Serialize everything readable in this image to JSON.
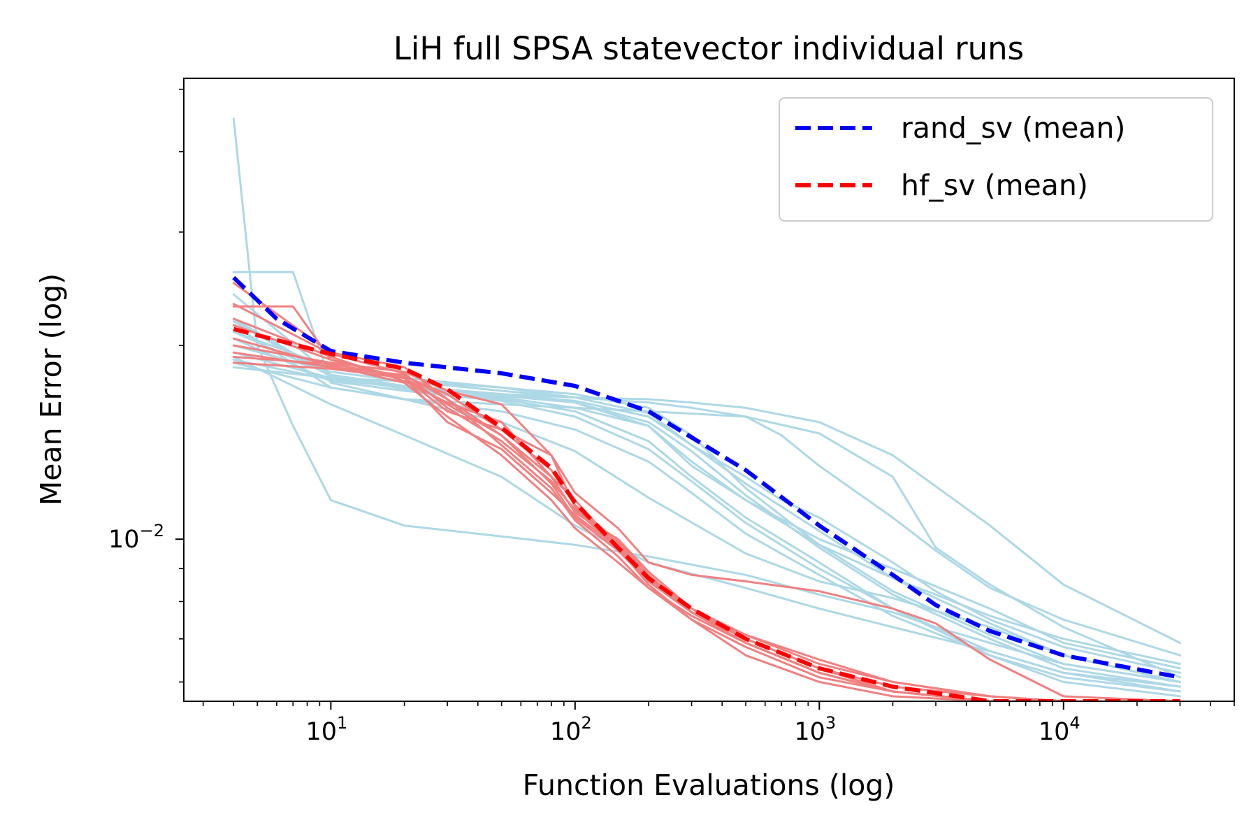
{
  "chart_data": {
    "type": "line",
    "title": "LiH full SPSA statevector individual runs",
    "xlabel": "Function Evaluations (log)",
    "ylabel": "Mean Error (log)",
    "xscale": "log",
    "yscale": "log",
    "xlim": [
      2.5,
      50000
    ],
    "ylim": [
      0.0056,
      0.052
    ],
    "x_ticks": [
      {
        "value": 10,
        "base": "10",
        "exp": "1"
      },
      {
        "value": 100,
        "base": "10",
        "exp": "2"
      },
      {
        "value": 1000,
        "base": "10",
        "exp": "3"
      },
      {
        "value": 10000,
        "base": "10",
        "exp": "4"
      }
    ],
    "y_ticks": [
      {
        "value": 0.01,
        "base": "10",
        "exp": "−2"
      }
    ],
    "legend": {
      "position": "upper right",
      "entries": [
        {
          "label": "rand_sv (mean)",
          "color": "#0000ff",
          "style": "dashed"
        },
        {
          "label": "hf_sv (mean)",
          "color": "#ff0000",
          "style": "dashed"
        }
      ]
    },
    "colors": {
      "rand_runs": "#add8e6",
      "hf_runs": "#f08080",
      "rand_mean": "#0000ff",
      "hf_mean": "#ff0000"
    },
    "series": [
      {
        "name": "rand_sv run 1",
        "group": "rand_runs",
        "x": [
          4,
          5,
          7,
          10,
          20,
          50,
          100,
          200,
          500,
          1000,
          2000,
          3000,
          5000,
          10000,
          30000
        ],
        "y": [
          0.045,
          0.02,
          0.015,
          0.0115,
          0.0105,
          0.0101,
          0.0098,
          0.0094,
          0.0088,
          0.0082,
          0.0077,
          0.0073,
          0.0069,
          0.0064,
          0.006
        ]
      },
      {
        "name": "rand_sv run 2",
        "group": "rand_runs",
        "x": [
          4,
          7,
          10,
          20,
          50,
          100,
          200,
          500,
          1000,
          2000,
          3000,
          5000,
          10000,
          30000
        ],
        "y": [
          0.026,
          0.026,
          0.0175,
          0.0165,
          0.0162,
          0.016,
          0.0158,
          0.0155,
          0.0146,
          0.0125,
          0.0097,
          0.0085,
          0.0073,
          0.0061
        ]
      },
      {
        "name": "rand_sv run 3",
        "group": "rand_runs",
        "x": [
          4,
          10,
          20,
          50,
          100,
          200,
          300,
          500,
          700,
          1000,
          2000,
          3000,
          5000,
          10000,
          30000
        ],
        "y": [
          0.022,
          0.018,
          0.0173,
          0.0168,
          0.0164,
          0.0155,
          0.014,
          0.0125,
          0.0115,
          0.0108,
          0.0092,
          0.0083,
          0.0075,
          0.0068,
          0.0062
        ]
      },
      {
        "name": "rand_sv run 4",
        "group": "rand_runs",
        "x": [
          4,
          10,
          20,
          50,
          100,
          200,
          300,
          500,
          1000,
          2000,
          5000,
          10000,
          30000
        ],
        "y": [
          0.021,
          0.018,
          0.0171,
          0.0166,
          0.016,
          0.015,
          0.0132,
          0.0115,
          0.01,
          0.009,
          0.0078,
          0.0069,
          0.0063
        ]
      },
      {
        "name": "rand_sv run 5",
        "group": "rand_runs",
        "x": [
          4,
          10,
          20,
          50,
          100,
          200,
          300,
          500,
          1000,
          2000,
          5000,
          10000,
          30000
        ],
        "y": [
          0.0195,
          0.0178,
          0.0172,
          0.0168,
          0.0166,
          0.0165,
          0.0163,
          0.016,
          0.0152,
          0.0135,
          0.0105,
          0.0085,
          0.0069
        ]
      },
      {
        "name": "rand_sv run 6",
        "group": "rand_runs",
        "x": [
          4,
          10,
          20,
          50,
          100,
          200,
          300,
          500,
          700,
          1000,
          2000,
          3000,
          5000,
          10000,
          30000
        ],
        "y": [
          0.02,
          0.0182,
          0.0176,
          0.017,
          0.0166,
          0.0163,
          0.016,
          0.0155,
          0.0145,
          0.013,
          0.0108,
          0.0096,
          0.0084,
          0.0075,
          0.0066
        ]
      },
      {
        "name": "rand_sv run 7",
        "group": "rand_runs",
        "x": [
          4,
          10,
          20,
          50,
          100,
          200,
          300,
          500,
          1000,
          2000,
          3000,
          5000,
          10000,
          30000
        ],
        "y": [
          0.0185,
          0.0178,
          0.0176,
          0.0172,
          0.0168,
          0.016,
          0.0145,
          0.012,
          0.0098,
          0.0087,
          0.0082,
          0.0076,
          0.007,
          0.0064
        ]
      },
      {
        "name": "rand_sv run 8",
        "group": "rand_runs",
        "x": [
          4,
          10,
          20,
          50,
          100,
          200,
          300,
          500,
          1000,
          2000,
          5000,
          10000,
          30000
        ],
        "y": [
          0.021,
          0.0185,
          0.0178,
          0.0172,
          0.0166,
          0.0157,
          0.014,
          0.0122,
          0.0103,
          0.0087,
          0.0074,
          0.0066,
          0.006
        ]
      },
      {
        "name": "rand_sv run 9",
        "group": "rand_runs",
        "x": [
          4,
          10,
          20,
          50,
          100,
          200,
          300,
          500,
          1000,
          2000,
          5000,
          10000,
          30000
        ],
        "y": [
          0.024,
          0.018,
          0.0173,
          0.0167,
          0.0163,
          0.015,
          0.013,
          0.0115,
          0.0098,
          0.0083,
          0.0071,
          0.0064,
          0.006
        ]
      },
      {
        "name": "rand_sv run 10",
        "group": "rand_runs",
        "x": [
          4,
          10,
          20,
          50,
          100,
          200,
          300,
          500,
          1000,
          2000,
          5000,
          10000,
          30000
        ],
        "y": [
          0.019,
          0.0177,
          0.0172,
          0.0165,
          0.0158,
          0.0142,
          0.0125,
          0.0108,
          0.0092,
          0.0078,
          0.0066,
          0.0061,
          0.0058
        ]
      },
      {
        "name": "rand_sv run 11",
        "group": "rand_runs",
        "x": [
          4,
          10,
          20,
          50,
          100,
          200,
          300,
          500,
          1000,
          2000,
          5000,
          10000,
          30000
        ],
        "y": [
          0.0188,
          0.0172,
          0.0165,
          0.0158,
          0.0148,
          0.0132,
          0.0118,
          0.0102,
          0.0088,
          0.0076,
          0.0066,
          0.006,
          0.0057
        ]
      },
      {
        "name": "rand_sv run 12",
        "group": "rand_runs",
        "x": [
          4,
          10,
          20,
          50,
          100,
          200,
          300,
          500,
          1000,
          2000,
          5000,
          10000,
          30000
        ],
        "y": [
          0.0205,
          0.0176,
          0.017,
          0.0164,
          0.0155,
          0.0138,
          0.0123,
          0.0106,
          0.009,
          0.0078,
          0.0067,
          0.0062,
          0.0059
        ]
      },
      {
        "name": "rand_sv run 13",
        "group": "rand_runs",
        "x": [
          4,
          10,
          20,
          50,
          100,
          200,
          500,
          1000,
          2000,
          5000,
          10000,
          30000
        ],
        "y": [
          0.0192,
          0.0162,
          0.0145,
          0.0125,
          0.0105,
          0.0092,
          0.0084,
          0.0078,
          0.0073,
          0.0067,
          0.0062,
          0.0058
        ]
      },
      {
        "name": "rand_sv run 14",
        "group": "rand_runs",
        "x": [
          4,
          10,
          20,
          50,
          100,
          200,
          300,
          500,
          1000,
          2000,
          5000,
          10000,
          30000
        ],
        "y": [
          0.0218,
          0.0179,
          0.0173,
          0.0168,
          0.0163,
          0.0152,
          0.0137,
          0.0117,
          0.0097,
          0.0082,
          0.007,
          0.0063,
          0.0059
        ]
      },
      {
        "name": "rand_sv run 15",
        "group": "rand_runs",
        "x": [
          4,
          10,
          20,
          50,
          100,
          200,
          500,
          1000,
          2000,
          5000,
          10000,
          30000
        ],
        "y": [
          0.0215,
          0.0172,
          0.0165,
          0.0152,
          0.0137,
          0.0116,
          0.0095,
          0.0086,
          0.0081,
          0.0073,
          0.0066,
          0.006
        ]
      },
      {
        "name": "hf_sv run 1",
        "group": "hf_runs",
        "x": [
          4,
          10,
          20,
          30,
          50,
          80,
          100,
          150,
          200,
          300,
          500,
          1000,
          2000,
          5000,
          10000,
          30000
        ],
        "y": [
          0.0195,
          0.0185,
          0.018,
          0.0165,
          0.0145,
          0.0125,
          0.0115,
          0.0097,
          0.0086,
          0.0077,
          0.0071,
          0.0065,
          0.006,
          0.0057,
          0.0056,
          0.0056
        ]
      },
      {
        "name": "hf_sv run 2",
        "group": "hf_runs",
        "x": [
          4,
          10,
          20,
          30,
          50,
          80,
          100,
          150,
          200,
          300,
          500,
          1000,
          2000,
          5000,
          10000,
          30000
        ],
        "y": [
          0.0215,
          0.019,
          0.0178,
          0.0158,
          0.0148,
          0.0135,
          0.0112,
          0.0098,
          0.0087,
          0.0078,
          0.0071,
          0.0064,
          0.006,
          0.0057,
          0.0056,
          0.0056
        ]
      },
      {
        "name": "hf_sv run 3",
        "group": "hf_runs",
        "x": [
          4,
          7,
          10,
          20,
          30,
          50,
          80,
          100,
          150,
          200,
          300,
          500,
          1000,
          2000,
          5000,
          10000,
          30000
        ],
        "y": [
          0.023,
          0.023,
          0.019,
          0.0178,
          0.0162,
          0.0145,
          0.0122,
          0.0108,
          0.0096,
          0.0086,
          0.0077,
          0.007,
          0.0063,
          0.0058,
          0.0056,
          0.0056,
          0.0056
        ]
      },
      {
        "name": "hf_sv run 4",
        "group": "hf_runs",
        "x": [
          4,
          10,
          20,
          30,
          50,
          80,
          100,
          150,
          200,
          300,
          500,
          1000,
          2000,
          5000,
          10000,
          30000
        ],
        "y": [
          0.0205,
          0.0186,
          0.0175,
          0.0155,
          0.0135,
          0.0115,
          0.0104,
          0.0092,
          0.0084,
          0.0076,
          0.0069,
          0.0062,
          0.0058,
          0.0056,
          0.0056,
          0.0056
        ]
      },
      {
        "name": "hf_sv run 5",
        "group": "hf_runs",
        "x": [
          4,
          10,
          20,
          30,
          50,
          80,
          100,
          150,
          200,
          300,
          500,
          1000,
          2000,
          3000,
          5000,
          10000,
          30000
        ],
        "y": [
          0.02,
          0.0188,
          0.0182,
          0.017,
          0.0162,
          0.0135,
          0.0118,
          0.0104,
          0.0092,
          0.0088,
          0.0086,
          0.0083,
          0.0078,
          0.0074,
          0.0065,
          0.0057,
          0.0056
        ]
      },
      {
        "name": "hf_sv run 6",
        "group": "hf_runs",
        "x": [
          4,
          10,
          20,
          30,
          50,
          80,
          100,
          150,
          200,
          300,
          500,
          1000,
          2000,
          5000,
          10000,
          30000
        ],
        "y": [
          0.025,
          0.0195,
          0.0185,
          0.0165,
          0.014,
          0.012,
          0.0107,
          0.0094,
          0.0084,
          0.0075,
          0.0068,
          0.0061,
          0.0058,
          0.0056,
          0.0056,
          0.0056
        ]
      },
      {
        "name": "hf_sv run 7",
        "group": "hf_runs",
        "x": [
          4,
          10,
          20,
          30,
          50,
          80,
          100,
          150,
          200,
          300,
          500,
          1000,
          2000,
          5000,
          10000,
          30000
        ],
        "y": [
          0.0188,
          0.0184,
          0.0178,
          0.0152,
          0.0138,
          0.0118,
          0.0109,
          0.0097,
          0.0085,
          0.0075,
          0.0066,
          0.006,
          0.0057,
          0.0056,
          0.0056,
          0.0056
        ]
      },
      {
        "name": "hf_sv run 8",
        "group": "hf_runs",
        "x": [
          4,
          10,
          20,
          30,
          50,
          80,
          100,
          150,
          200,
          300,
          500,
          1000,
          2000,
          5000,
          10000,
          30000
        ],
        "y": [
          0.022,
          0.0192,
          0.0176,
          0.0163,
          0.0152,
          0.0125,
          0.011,
          0.01,
          0.0089,
          0.0078,
          0.007,
          0.0063,
          0.0059,
          0.0057,
          0.0056,
          0.0056
        ]
      },
      {
        "name": "hf_sv run 9",
        "group": "hf_runs",
        "x": [
          4,
          10,
          20,
          30,
          50,
          80,
          100,
          150,
          200,
          300,
          500,
          1000,
          2000,
          5000,
          10000,
          30000
        ],
        "y": [
          0.0192,
          0.0187,
          0.0179,
          0.0168,
          0.0148,
          0.0128,
          0.0113,
          0.0099,
          0.0088,
          0.0077,
          0.0069,
          0.0062,
          0.0058,
          0.0056,
          0.0056,
          0.0056
        ]
      },
      {
        "name": "hf_sv run 10",
        "group": "hf_runs",
        "x": [
          4,
          10,
          20,
          30,
          50,
          80,
          100,
          150,
          200,
          300,
          500,
          1000,
          2000,
          5000,
          10000,
          30000
        ],
        "y": [
          0.0232,
          0.0194,
          0.0181,
          0.016,
          0.0142,
          0.0123,
          0.0111,
          0.0097,
          0.0087,
          0.0077,
          0.0069,
          0.0062,
          0.0058,
          0.0056,
          0.0056,
          0.0056
        ]
      },
      {
        "name": "rand_sv (mean)",
        "group": "rand_mean",
        "x": [
          4,
          6,
          10,
          20,
          50,
          100,
          200,
          500,
          1000,
          2000,
          3000,
          5000,
          10000,
          30000
        ],
        "y": [
          0.0255,
          0.022,
          0.0196,
          0.0188,
          0.0181,
          0.0173,
          0.0158,
          0.0128,
          0.0105,
          0.0088,
          0.0079,
          0.0072,
          0.0066,
          0.0061
        ]
      },
      {
        "name": "hf_sv (mean)",
        "group": "hf_mean",
        "x": [
          4,
          10,
          20,
          30,
          50,
          80,
          100,
          150,
          200,
          300,
          500,
          1000,
          2000,
          5000,
          10000,
          30000
        ],
        "y": [
          0.0212,
          0.0194,
          0.0184,
          0.0171,
          0.0149,
          0.0129,
          0.0114,
          0.0097,
          0.0087,
          0.0078,
          0.007,
          0.0063,
          0.0059,
          0.0056,
          0.0056,
          0.0056
        ]
      }
    ]
  }
}
